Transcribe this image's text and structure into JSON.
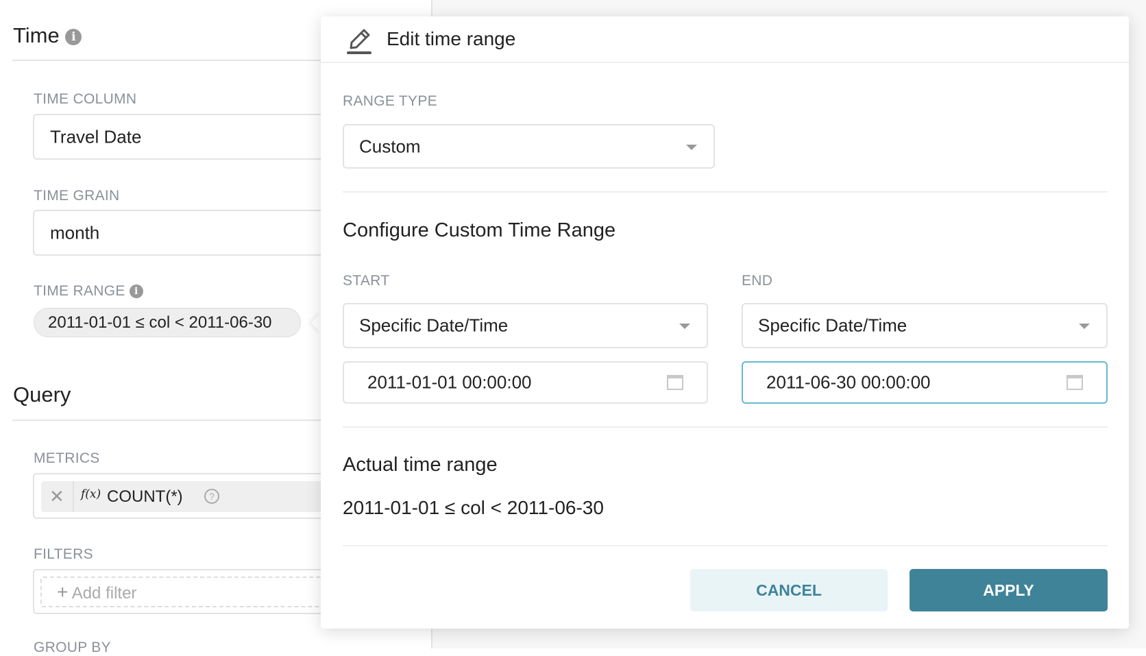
{
  "sidebar": {
    "time_title": "Time",
    "time_column_label": "TIME COLUMN",
    "time_column_value": "Travel Date",
    "time_grain_label": "TIME GRAIN",
    "time_grain_value": "month",
    "time_range_label": "TIME RANGE",
    "time_range_value": "2011-01-01 ≤ col < 2011-06-30",
    "query_title": "Query",
    "metrics_label": "METRICS",
    "metric_fx": "f(x)",
    "metric_value": "COUNT(*)",
    "filters_label": "FILTERS",
    "add_filter": "Add filter",
    "group_by_label": "GROUP BY"
  },
  "popover": {
    "title": "Edit time range",
    "range_type_label": "RANGE TYPE",
    "range_type_value": "Custom",
    "custom_heading": "Configure Custom Time Range",
    "start_label": "START",
    "start_mode": "Specific Date/Time",
    "start_value": "2011-01-01 00:00:00",
    "end_label": "END",
    "end_mode": "Specific Date/Time",
    "end_value": "2011-06-30 00:00:00",
    "actual_heading": "Actual time range",
    "actual_value": "2011-01-01 ≤ col < 2011-06-30",
    "cancel": "CANCEL",
    "apply": "APPLY"
  },
  "colors": {
    "primary": "#3f8399",
    "primary_light": "#e9f4f7",
    "focus_border": "#66b8d0"
  }
}
